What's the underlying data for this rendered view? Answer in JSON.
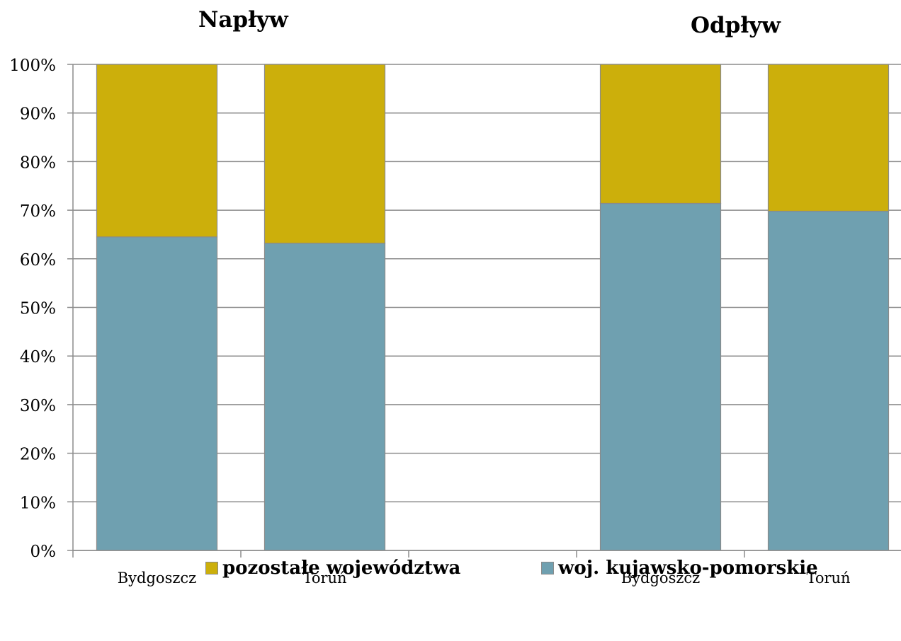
{
  "groups": [
    {
      "title": "Napływ"
    },
    {
      "title": "Odpływ"
    }
  ],
  "chart_data": {
    "type": "bar",
    "stacked": true,
    "percent_stacked": true,
    "groups": [
      "Napływ",
      "Odpływ"
    ],
    "categories": [
      "Bydgoszcz",
      "Toruń",
      "Bydgoszcz",
      "Toruń"
    ],
    "category_group": [
      0,
      0,
      1,
      1
    ],
    "series": [
      {
        "name": "woj. kujawsko-pomorskie",
        "color": "#6fa0b0",
        "values": [
          64.5,
          63.2,
          71.4,
          69.8
        ]
      },
      {
        "name": "pozostałe województwa",
        "color": "#ccaf0b",
        "values": [
          35.5,
          36.8,
          28.6,
          30.2
        ]
      }
    ],
    "yticks": [
      "0%",
      "10%",
      "20%",
      "30%",
      "40%",
      "50%",
      "60%",
      "70%",
      "80%",
      "90%",
      "100%"
    ],
    "ylim": [
      0,
      100
    ],
    "grid": true,
    "legend_position": "bottom",
    "legend_order": [
      "pozostałe województwa",
      "woj. kujawsko-pomorskie"
    ]
  }
}
